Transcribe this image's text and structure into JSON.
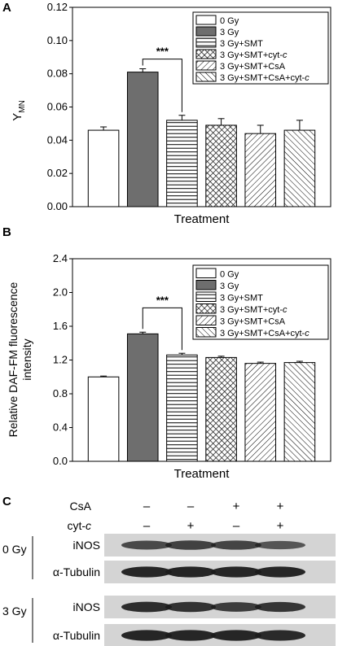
{
  "chart_data": [
    {
      "panel": "A",
      "type": "bar",
      "categories": [
        "0 Gy",
        "3 Gy",
        "3 Gy+SMT",
        "3 Gy+SMT+cyt-c",
        "3 Gy+SMT+CsA",
        "3 Gy+SMT+CsA+cyt-c"
      ],
      "values": [
        0.046,
        0.081,
        0.052,
        0.049,
        0.044,
        0.046
      ],
      "errors": [
        0.002,
        0.002,
        0.003,
        0.004,
        0.005,
        0.006
      ],
      "patterns": [
        "none",
        "solid-gray",
        "horizontal-lines",
        "crosshatch",
        "diagonal-up",
        "diagonal-down"
      ],
      "xlabel": "Treatment",
      "ylabel": "Y",
      "ylabel_sub": "MN",
      "ylim": [
        0,
        0.12
      ],
      "yticks": [
        "0.00",
        "0.02",
        "0.04",
        "0.06",
        "0.08",
        "0.10",
        "0.12"
      ],
      "legend_position": "top-right",
      "annotation": "***",
      "bracket": [
        1,
        2
      ]
    },
    {
      "panel": "B",
      "type": "bar",
      "categories": [
        "0 Gy",
        "3 Gy",
        "3 Gy+SMT",
        "3 Gy+SMT+cyt-c",
        "3 Gy+SMT+CsA",
        "3 Gy+SMT+CsA+cyt-c"
      ],
      "values": [
        1.0,
        1.51,
        1.26,
        1.23,
        1.16,
        1.17
      ],
      "errors": [
        0.01,
        0.02,
        0.02,
        0.015,
        0.015,
        0.015
      ],
      "patterns": [
        "none",
        "solid-gray",
        "horizontal-lines",
        "crosshatch",
        "diagonal-up",
        "diagonal-down"
      ],
      "xlabel": "Treatment",
      "ylabel_line1": "Relative DAF-FM fluorescence",
      "ylabel_line2": "intensity",
      "ylim": [
        0,
        2.4
      ],
      "yticks": [
        "0.0",
        "0.4",
        "0.8",
        "1.2",
        "1.6",
        "2.0",
        "2.4"
      ],
      "legend_position": "top-right",
      "annotation": "***",
      "bracket": [
        1,
        2
      ]
    }
  ],
  "panels": {
    "a": "A",
    "b": "B",
    "c": "C"
  },
  "legend": {
    "items": [
      {
        "label": "0 Gy"
      },
      {
        "label": "3 Gy"
      },
      {
        "label": "3 Gy+SMT"
      },
      {
        "prefix": "3 Gy+SMT+cyt-",
        "italic": "c"
      },
      {
        "label": "3 Gy+SMT+CsA"
      },
      {
        "prefix": "3 Gy+SMT+CsA+cyt-",
        "italic": "c"
      }
    ]
  },
  "western": {
    "rows": [
      {
        "label": "CsA",
        "signs": [
          "–",
          "–",
          "+",
          "+"
        ]
      },
      {
        "label_prefix": "cyt-",
        "label_italic": "c",
        "signs": [
          "–",
          "+",
          "–",
          "+"
        ]
      }
    ],
    "groups": [
      {
        "name": "0 Gy",
        "bands": [
          "iNOS",
          "α-Tubulin"
        ],
        "intensity": [
          [
            0.62,
            0.7,
            0.66,
            0.52
          ],
          [
            0.9,
            0.92,
            0.9,
            0.9
          ]
        ]
      },
      {
        "name": "3 Gy",
        "bands": [
          "iNOS",
          "α-Tubulin"
        ],
        "intensity": [
          [
            0.85,
            0.82,
            0.72,
            0.78
          ],
          [
            0.9,
            0.9,
            0.9,
            0.88
          ]
        ]
      }
    ]
  },
  "colors": {
    "bar_gray": "#6e6e6e",
    "blot_bg": "#d4d4d4",
    "band": "#1b1b1b"
  }
}
